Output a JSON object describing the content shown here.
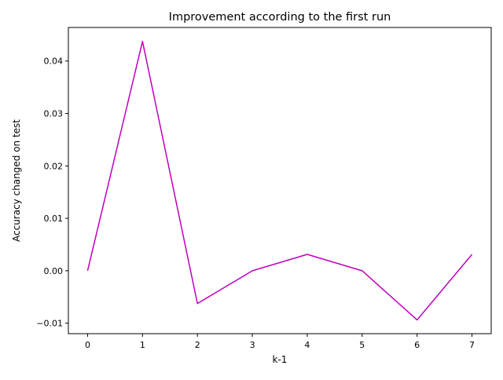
{
  "chart_data": {
    "type": "line",
    "title": "Improvement according to the first run",
    "xlabel": "k-1",
    "ylabel": "Accuracy changed on test",
    "x": [
      0,
      1,
      2,
      3,
      4,
      5,
      6,
      7
    ],
    "series": [
      {
        "values": [
          0.0,
          0.04375,
          -0.00625,
          0.0,
          0.003125,
          0.0,
          -0.009375,
          0.003125
        ],
        "color": "#bf00bf"
      }
    ],
    "xlim": [
      -0.35,
      7.35
    ],
    "ylim": [
      -0.012,
      0.0464
    ],
    "xticks": [
      0,
      1,
      2,
      3,
      4,
      5,
      6,
      7
    ],
    "yticks": [
      -0.01,
      0.0,
      0.01,
      0.02,
      0.03,
      0.04
    ],
    "ytick_labels": [
      "−0.01",
      "0.00",
      "0.01",
      "0.02",
      "0.03",
      "0.04"
    ],
    "grid": false,
    "legend": "none"
  }
}
